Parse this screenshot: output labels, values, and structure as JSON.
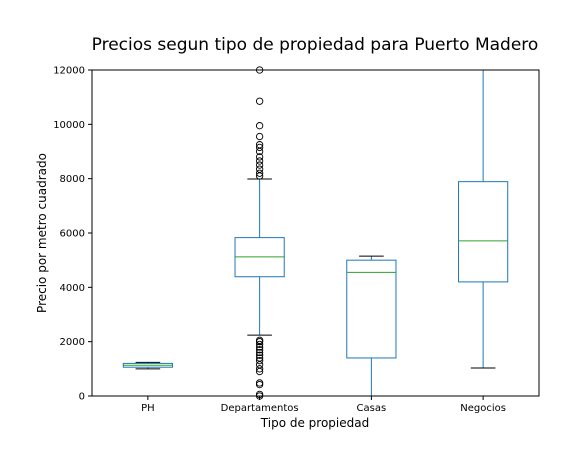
{
  "chart_data": {
    "type": "box",
    "title": "Precios segun tipo de propiedad para Puerto Madero",
    "xlabel": "Tipo de propiedad",
    "ylabel": "Precio por metro cuadrado",
    "ylim": [
      0,
      12000
    ],
    "yticks": [
      0,
      2000,
      4000,
      6000,
      8000,
      10000,
      12000
    ],
    "ytick_labels": [
      "0",
      "2000",
      "4000",
      "6000",
      "8000",
      "10000",
      "12000"
    ],
    "grid": false,
    "categories": [
      "PH",
      "Departamentos",
      "Casas",
      "Negocios"
    ],
    "boxes": [
      {
        "whisker_low": 1000,
        "q1": 1060,
        "median": 1130,
        "q3": 1200,
        "whisker_high": 1240,
        "outliers": []
      },
      {
        "whisker_low": 2240,
        "q1": 4390,
        "median": 5120,
        "q3": 5830,
        "whisker_high": 7990,
        "outliers": [
          0,
          60,
          420,
          480,
          900,
          1000,
          1150,
          1300,
          1400,
          1500,
          1600,
          1700,
          1800,
          1900,
          2000,
          2050,
          8100,
          8200,
          8350,
          8500,
          8650,
          8800,
          9000,
          9150,
          9250,
          9550,
          9950,
          10850,
          12000
        ]
      },
      {
        "whisker_low": 0,
        "q1": 1400,
        "median": 4550,
        "q3": 5000,
        "whisker_high": 5150,
        "outliers": []
      },
      {
        "whisker_low": 1030,
        "q1": 4200,
        "median": 5710,
        "q3": 7890,
        "whisker_high": 12000,
        "outliers": []
      }
    ],
    "colors": {
      "box": "#1f77b4",
      "median": "#2ca02c",
      "outlier": "#000000",
      "axis": "#000000"
    }
  }
}
